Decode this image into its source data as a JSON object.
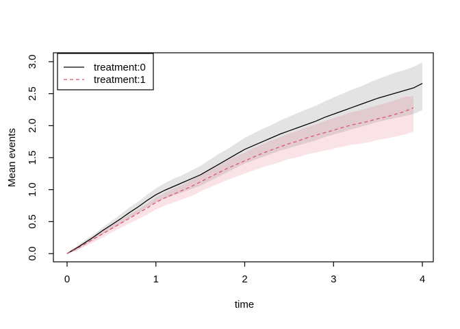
{
  "figure": {
    "background": "#ffffff",
    "axis_color": "#000000"
  },
  "chart_data": {
    "type": "line",
    "title": "",
    "xlabel": "time",
    "ylabel": "Mean events",
    "xlim": [
      0,
      4
    ],
    "ylim": [
      0.0,
      3.0
    ],
    "grid": false,
    "xticks": {
      "values": [
        0,
        1,
        2,
        3,
        4
      ],
      "labels": [
        "0",
        "1",
        "2",
        "3",
        "4"
      ]
    },
    "yticks": {
      "values": [
        0.0,
        0.5,
        1.0,
        1.5,
        2.0,
        2.5,
        3.0
      ],
      "labels": [
        "0.0",
        "0.5",
        "1.0",
        "1.5",
        "2.0",
        "2.5",
        "3.0"
      ]
    },
    "legend": {
      "position": "topleft",
      "border": true,
      "entries": [
        "treatment:0",
        "treatment:1"
      ]
    },
    "series": [
      {
        "name": "treatment:0",
        "color": "#000000",
        "linestyle": "solid",
        "band_color": "rgba(128,128,128,0.22)",
        "x": [
          0.0,
          0.1,
          0.2,
          0.3,
          0.4,
          0.5,
          0.6,
          0.7,
          0.8,
          0.9,
          1.0,
          1.1,
          1.2,
          1.3,
          1.4,
          1.5,
          1.6,
          1.7,
          1.8,
          1.9,
          2.0,
          2.1,
          2.2,
          2.3,
          2.4,
          2.5,
          2.6,
          2.7,
          2.8,
          2.9,
          3.0,
          3.1,
          3.2,
          3.3,
          3.4,
          3.5,
          3.6,
          3.7,
          3.8,
          3.9,
          4.0
        ],
        "mean": [
          0.0,
          0.08,
          0.17,
          0.26,
          0.36,
          0.45,
          0.54,
          0.64,
          0.73,
          0.83,
          0.92,
          0.99,
          1.05,
          1.11,
          1.17,
          1.23,
          1.31,
          1.39,
          1.47,
          1.55,
          1.63,
          1.69,
          1.75,
          1.81,
          1.87,
          1.92,
          1.97,
          2.02,
          2.07,
          2.13,
          2.18,
          2.23,
          2.28,
          2.33,
          2.38,
          2.43,
          2.47,
          2.51,
          2.55,
          2.59,
          2.66
        ],
        "lower": [
          0.0,
          0.05,
          0.13,
          0.21,
          0.3,
          0.38,
          0.46,
          0.55,
          0.63,
          0.72,
          0.8,
          0.86,
          0.91,
          0.96,
          1.01,
          1.06,
          1.13,
          1.2,
          1.27,
          1.34,
          1.41,
          1.46,
          1.51,
          1.56,
          1.61,
          1.65,
          1.69,
          1.73,
          1.77,
          1.82,
          1.86,
          1.9,
          1.94,
          1.98,
          2.02,
          2.06,
          2.09,
          2.12,
          2.15,
          2.18,
          2.24
        ],
        "upper": [
          0.01,
          0.11,
          0.21,
          0.3,
          0.41,
          0.51,
          0.61,
          0.72,
          0.81,
          0.92,
          1.02,
          1.1,
          1.17,
          1.23,
          1.3,
          1.37,
          1.46,
          1.55,
          1.63,
          1.72,
          1.81,
          1.88,
          1.95,
          2.01,
          2.08,
          2.14,
          2.2,
          2.26,
          2.31,
          2.38,
          2.44,
          2.5,
          2.56,
          2.61,
          2.67,
          2.73,
          2.78,
          2.83,
          2.87,
          2.92,
          2.99
        ]
      },
      {
        "name": "treatment:1",
        "color": "#DF536B",
        "linestyle": "dashed",
        "band_color": "rgba(223,83,107,0.16)",
        "x": [
          0.0,
          0.1,
          0.2,
          0.3,
          0.4,
          0.5,
          0.6,
          0.7,
          0.8,
          0.9,
          1.0,
          1.1,
          1.2,
          1.3,
          1.4,
          1.5,
          1.6,
          1.7,
          1.8,
          1.9,
          2.0,
          2.1,
          2.2,
          2.3,
          2.4,
          2.5,
          2.6,
          2.7,
          2.8,
          2.9,
          3.0,
          3.1,
          3.2,
          3.3,
          3.4,
          3.5,
          3.6,
          3.7,
          3.8,
          3.9
        ],
        "mean": [
          0.0,
          0.07,
          0.15,
          0.23,
          0.31,
          0.39,
          0.47,
          0.55,
          0.63,
          0.71,
          0.8,
          0.87,
          0.93,
          0.99,
          1.05,
          1.12,
          1.19,
          1.26,
          1.33,
          1.39,
          1.45,
          1.51,
          1.57,
          1.62,
          1.67,
          1.72,
          1.76,
          1.81,
          1.85,
          1.89,
          1.93,
          1.97,
          2.01,
          2.04,
          2.07,
          2.11,
          2.14,
          2.18,
          2.22,
          2.28
        ],
        "lower": [
          0.0,
          0.04,
          0.11,
          0.18,
          0.25,
          0.33,
          0.4,
          0.47,
          0.54,
          0.61,
          0.69,
          0.75,
          0.8,
          0.85,
          0.9,
          0.97,
          1.03,
          1.09,
          1.15,
          1.2,
          1.25,
          1.3,
          1.35,
          1.39,
          1.43,
          1.48,
          1.51,
          1.55,
          1.58,
          1.61,
          1.64,
          1.67,
          1.7,
          1.72,
          1.74,
          1.78,
          1.8,
          1.83,
          1.86,
          1.91
        ],
        "upper": [
          0.01,
          0.1,
          0.18,
          0.27,
          0.35,
          0.44,
          0.52,
          0.61,
          0.69,
          0.78,
          0.88,
          0.95,
          1.02,
          1.08,
          1.15,
          1.22,
          1.3,
          1.37,
          1.45,
          1.52,
          1.58,
          1.65,
          1.71,
          1.77,
          1.82,
          1.88,
          1.92,
          1.98,
          2.02,
          2.07,
          2.12,
          2.16,
          2.21,
          2.24,
          2.28,
          2.32,
          2.36,
          2.4,
          2.45,
          2.46
        ]
      }
    ]
  }
}
